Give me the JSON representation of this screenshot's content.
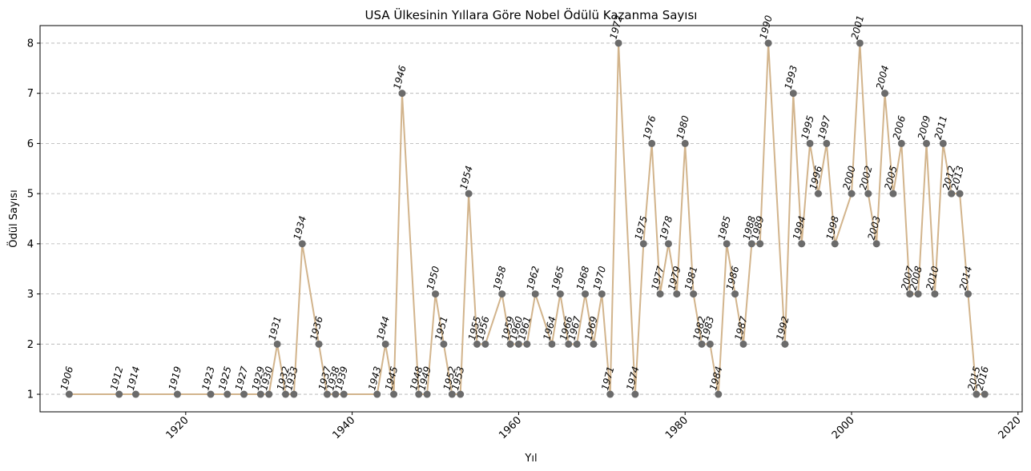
{
  "chart_data": {
    "type": "line",
    "title": "USA Ülkesinin Yıllara Göre Nobel Ödülü Kazanma Sayısı",
    "xlabel": "Yıl",
    "ylabel": "Ödül Sayısı",
    "xlim": [
      1902.5,
      2020.5
    ],
    "ylim": [
      0.65,
      8.35
    ],
    "xticks": [
      1920,
      1940,
      1960,
      1980,
      2000,
      2020
    ],
    "yticks": [
      1,
      2,
      3,
      4,
      5,
      6,
      7,
      8
    ],
    "grid": "horizontal-dashed",
    "line_color": "#d2b48c",
    "marker_color": "#6b6b6b",
    "x": [
      1906,
      1912,
      1914,
      1919,
      1923,
      1925,
      1927,
      1929,
      1930,
      1931,
      1932,
      1933,
      1934,
      1936,
      1937,
      1938,
      1939,
      1943,
      1944,
      1945,
      1946,
      1948,
      1949,
      1950,
      1951,
      1952,
      1953,
      1954,
      1955,
      1956,
      1958,
      1959,
      1960,
      1961,
      1962,
      1964,
      1965,
      1966,
      1967,
      1968,
      1969,
      1970,
      1971,
      1972,
      1974,
      1975,
      1976,
      1977,
      1978,
      1979,
      1980,
      1981,
      1982,
      1983,
      1984,
      1985,
      1986,
      1987,
      1988,
      1989,
      1990,
      1992,
      1993,
      1994,
      1995,
      1996,
      1997,
      1998,
      2000,
      2001,
      2002,
      2003,
      2004,
      2005,
      2006,
      2007,
      2008,
      2009,
      2010,
      2011,
      2012,
      2013,
      2014,
      2015,
      2016
    ],
    "y": [
      1,
      1,
      1,
      1,
      1,
      1,
      1,
      1,
      1,
      2,
      1,
      1,
      4,
      2,
      1,
      1,
      1,
      1,
      2,
      1,
      7,
      1,
      1,
      3,
      2,
      1,
      1,
      5,
      2,
      2,
      3,
      2,
      2,
      2,
      3,
      2,
      3,
      2,
      2,
      3,
      2,
      3,
      1,
      8,
      1,
      4,
      6,
      3,
      4,
      3,
      6,
      3,
      2,
      2,
      1,
      4,
      3,
      2,
      4,
      4,
      8,
      2,
      7,
      4,
      6,
      5,
      6,
      4,
      5,
      8,
      5,
      4,
      7,
      5,
      6,
      3,
      3,
      6,
      3,
      6,
      5,
      5,
      3,
      1,
      1
    ]
  }
}
